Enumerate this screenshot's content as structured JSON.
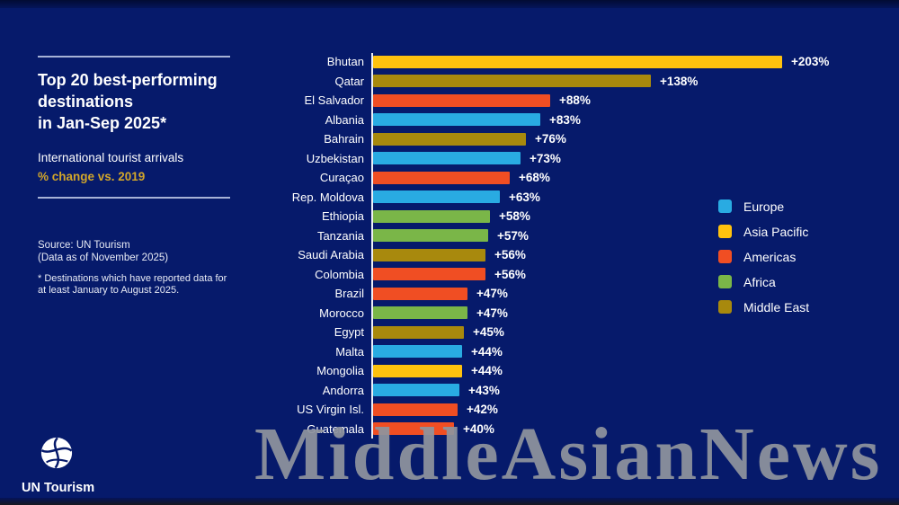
{
  "panel": {
    "title_lines": [
      "Top 20 best-performing",
      "destinations",
      "in Jan-Sep 2025*"
    ],
    "subtitle_line1": "International tourist arrivals",
    "subtitle_line2": "% change vs. 2019",
    "source_lines": [
      "Source: UN Tourism",
      "(Data as of November 2025)"
    ],
    "footnote_lines": [
      "* Destinations which have reported data for",
      "at least January to August 2025."
    ]
  },
  "logo": {
    "label": "UN Tourism",
    "icon": "un-tourism-globe-icon"
  },
  "watermark": {
    "text": "MiddleAsianNews",
    "color": "#8F949E"
  },
  "legend": {
    "position": "right",
    "items": [
      {
        "label": "Europe",
        "color": "#29ABE2"
      },
      {
        "label": "Asia Pacific",
        "color": "#FFC20E"
      },
      {
        "label": "Americas",
        "color": "#F04E23"
      },
      {
        "label": "Africa",
        "color": "#7AB648"
      },
      {
        "label": "Middle East",
        "color": "#A8890D"
      }
    ]
  },
  "chart_data": {
    "type": "bar",
    "orientation": "horizontal",
    "title": "Top 20 best-performing destinations in Jan-Sep 2025*",
    "subtitle": "International tourist arrivals, % change vs. 2019",
    "xlabel": "% change vs. 2019",
    "ylabel": "",
    "xlim": [
      0,
      210
    ],
    "grid": false,
    "legend_position": "right",
    "background": "#061A6B",
    "categories": [
      "Bhutan",
      "Qatar",
      "El Salvador",
      "Albania",
      "Bahrain",
      "Uzbekistan",
      "Curaçao",
      "Rep. Moldova",
      "Ethiopia",
      "Tanzania",
      "Saudi Arabia",
      "Colombia",
      "Brazil",
      "Morocco",
      "Egypt",
      "Malta",
      "Mongolia",
      "Andorra",
      "US Virgin Isl.",
      "Guatemala"
    ],
    "values": [
      203,
      138,
      88,
      83,
      76,
      73,
      68,
      63,
      58,
      57,
      56,
      56,
      47,
      47,
      45,
      44,
      44,
      43,
      42,
      40
    ],
    "value_labels": [
      "+203%",
      "+138%",
      "+88%",
      "+83%",
      "+76%",
      "+73%",
      "+68%",
      "+63%",
      "+58%",
      "+57%",
      "+56%",
      "+56%",
      "+47%",
      "+47%",
      "+45%",
      "+44%",
      "+44%",
      "+43%",
      "+42%",
      "+40%"
    ],
    "regions": [
      "Asia Pacific",
      "Middle East",
      "Americas",
      "Europe",
      "Middle East",
      "Europe",
      "Americas",
      "Europe",
      "Africa",
      "Africa",
      "Middle East",
      "Americas",
      "Americas",
      "Africa",
      "Middle East",
      "Europe",
      "Asia Pacific",
      "Europe",
      "Americas",
      "Americas"
    ]
  }
}
